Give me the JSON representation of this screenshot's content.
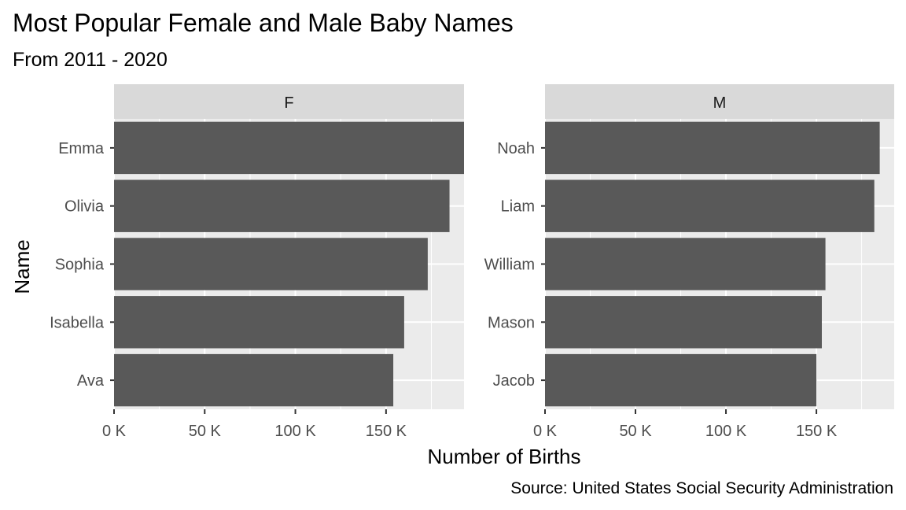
{
  "chart_data": {
    "type": "bar",
    "orientation": "horizontal",
    "title": "Most Popular Female and Male Baby Names",
    "subtitle": "From 2011 - 2020",
    "xlabel": "Number of Births",
    "ylabel": "Name",
    "caption": "Source: United States Social Security Administration",
    "xlim": [
      0,
      193000
    ],
    "x_ticks": [
      0,
      50000,
      100000,
      150000
    ],
    "x_tick_labels": [
      "0 K",
      "50 K",
      "100 K",
      "150 K"
    ],
    "grid": true,
    "bar_color": "#595959",
    "panel_background": "#ebebeb",
    "strip_background": "#d9d9d9",
    "facets": [
      {
        "label": "F",
        "categories": [
          "Emma",
          "Olivia",
          "Sophia",
          "Isabella",
          "Ava"
        ],
        "values": [
          193000,
          185000,
          173000,
          160000,
          154000
        ]
      },
      {
        "label": "M",
        "categories": [
          "Noah",
          "Liam",
          "William",
          "Mason",
          "Jacob"
        ],
        "values": [
          185000,
          182000,
          155000,
          153000,
          150000
        ]
      }
    ]
  }
}
